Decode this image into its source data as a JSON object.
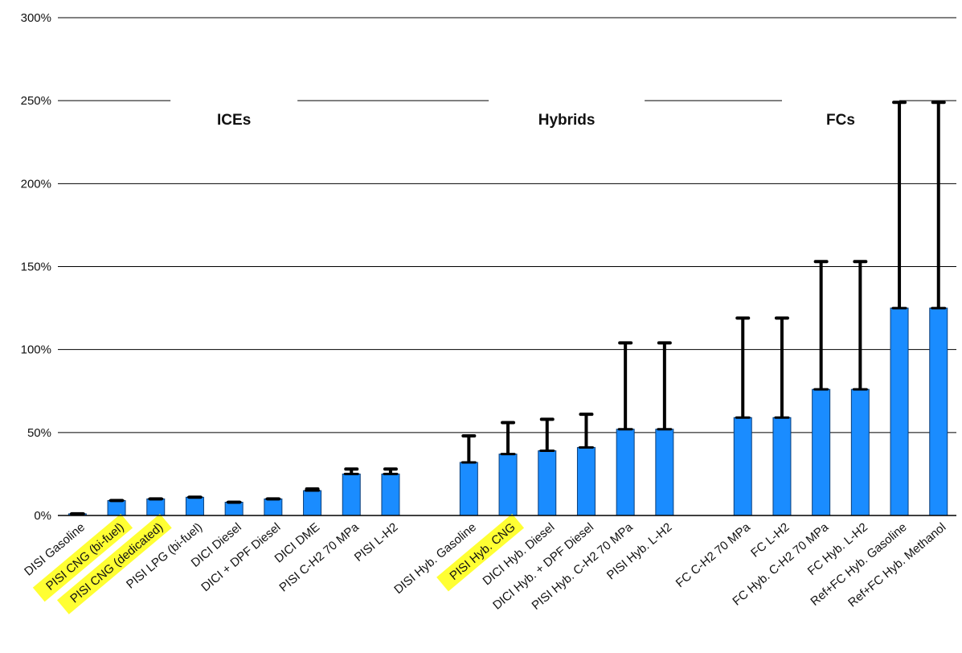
{
  "chart_data": {
    "type": "bar",
    "title": "",
    "xlabel": "",
    "ylabel": "",
    "ylim": [
      0,
      300
    ],
    "yticks": [
      0,
      50,
      100,
      150,
      200,
      250,
      300
    ],
    "ytick_labels": [
      "0%",
      "50%",
      "100%",
      "150%",
      "200%",
      "250%",
      "300%"
    ],
    "grid": true,
    "bar_color": "#1a8cff",
    "error_color": "#000000",
    "highlight_color": "#ffff33",
    "groups": [
      {
        "label": "ICEs",
        "first": 0,
        "last": 8
      },
      {
        "label": "Hybrids",
        "first": 9,
        "last": 14
      },
      {
        "label": "FCs",
        "first": 15,
        "last": 20
      }
    ],
    "categories": [
      "DISI Gasoline",
      "PISI CNG (bi-fuel)",
      "PISI CNG (dedicated)",
      "PISI LPG (bi-fuel)",
      "DICI Diesel",
      "DICI + DPF Diesel",
      "DICI DME",
      "PISI C-H2 70 MPa",
      "PISI L-H2",
      "DISI Hyb. Gasoline",
      "PISI Hyb. CNG",
      "DICI Hyb. Diesel",
      "DICI Hyb. + DPF Diesel",
      "PISI Hyb. C-H2 70 MPa",
      "PISI Hyb. L-H2",
      "FC C-H2 70 MPa",
      "FC L-H2",
      "FC Hyb. C-H2 70 MPa",
      "FC Hyb. L-H2",
      "Ref+FC Hyb. Gasoline",
      "Ref+FC Hyb. Methanol"
    ],
    "highlighted": [
      "PISI CNG (bi-fuel)",
      "PISI CNG (dedicated)",
      "PISI Hyb. CNG"
    ],
    "values": [
      1,
      9,
      10,
      11,
      8,
      10,
      15,
      25,
      25,
      32,
      37,
      39,
      41,
      52,
      52,
      59,
      59,
      76,
      76,
      125,
      125
    ],
    "error_high": [
      1,
      9,
      10,
      11,
      8,
      10,
      16,
      28,
      28,
      48,
      56,
      58,
      61,
      104,
      104,
      119,
      119,
      153,
      153,
      249,
      249
    ]
  }
}
